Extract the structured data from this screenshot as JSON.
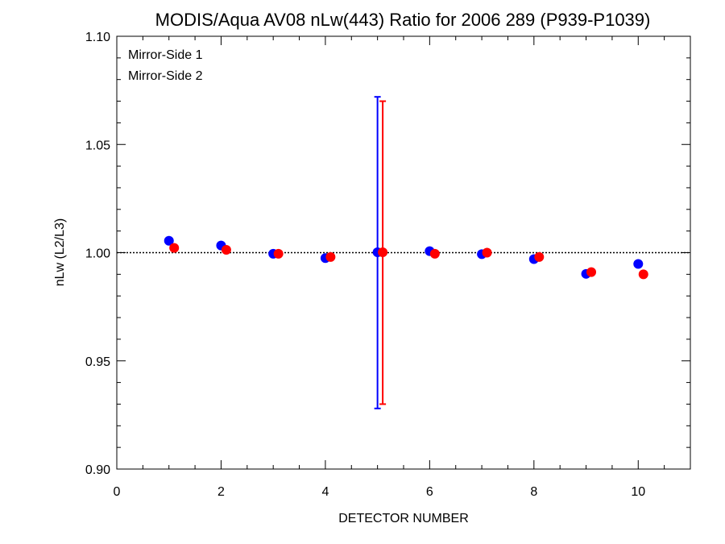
{
  "chart_data": {
    "type": "scatter",
    "title": "MODIS/Aqua AV08 nLw(443) Ratio for 2006 289 (P939-P1039)",
    "xlabel": "DETECTOR NUMBER",
    "ylabel": "nLw (L2/L3)",
    "xlim": [
      0,
      11
    ],
    "ylim": [
      0.9,
      1.1
    ],
    "xticks": [
      0,
      2,
      4,
      6,
      8,
      10
    ],
    "xtick_labels": [
      "0",
      "2",
      "4",
      "6",
      "8",
      "10"
    ],
    "yticks": [
      0.9,
      0.95,
      1.0,
      1.05,
      1.1
    ],
    "ytick_labels": [
      "0.90",
      "0.95",
      "1.00",
      "1.05",
      "1.10"
    ],
    "reference_line": 1.0,
    "legend_position": "top-left",
    "series": [
      {
        "name": "Mirror-Side 1",
        "color": "#0000ff",
        "x": [
          1,
          2,
          3,
          4,
          5,
          6,
          7,
          8,
          9,
          10
        ],
        "y": [
          1.0055,
          1.0033,
          0.9995,
          0.9975,
          1.0002,
          1.0007,
          0.9993,
          0.997,
          0.9902,
          0.9948
        ],
        "error_bar": {
          "x": 5,
          "low": 0.928,
          "high": 1.072
        }
      },
      {
        "name": "Mirror-Side 2",
        "color": "#ff0000",
        "x": [
          1.1,
          2.1,
          3.1,
          4.1,
          5.1,
          6.1,
          7.1,
          8.1,
          9.1,
          10.1
        ],
        "y": [
          1.0022,
          1.0013,
          0.9995,
          0.998,
          1.0002,
          0.9995,
          1.0,
          0.998,
          0.991,
          0.99
        ],
        "error_bar": {
          "x": 5.1,
          "low": 0.93,
          "high": 1.07
        }
      }
    ]
  }
}
